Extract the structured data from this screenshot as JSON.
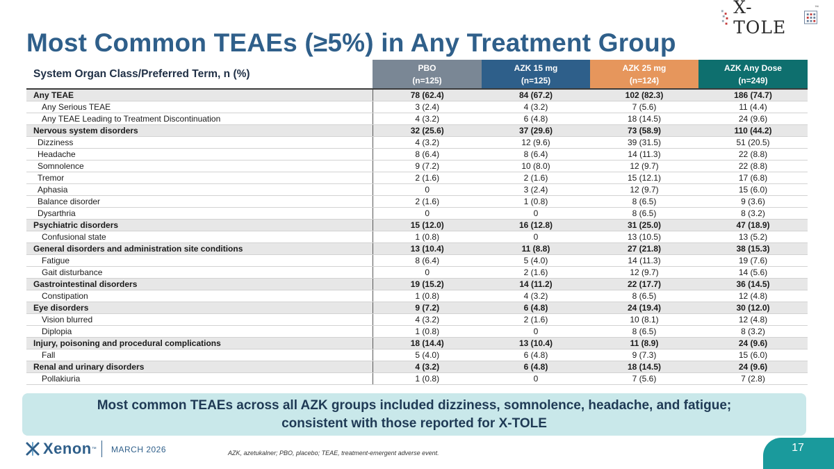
{
  "brand": {
    "product_logo": "X-TOLE",
    "company_logo": "Xenon",
    "date": "MARCH 2026",
    "page_number": "17"
  },
  "title": "Most Common TEAEs (≥5%) in Any Treatment Group",
  "table": {
    "row_header": "System Organ Class/Preferred Term, n (%)",
    "columns": [
      {
        "name": "PBO",
        "n": "(n=125)",
        "color": "#7a8795"
      },
      {
        "name": "AZK 15 mg",
        "n": "(n=125)",
        "color": "#2e5f8a"
      },
      {
        "name": "AZK 25 mg",
        "n": "(n=124)",
        "color": "#e6965c"
      },
      {
        "name": "AZK Any Dose",
        "n": "(n=249)",
        "color": "#0e6f6e"
      }
    ],
    "rows": [
      {
        "label": "Any TEAE",
        "level": 0,
        "values": [
          "78 (62.4)",
          "84 (67.2)",
          "102 (82.3)",
          "186 (74.7)"
        ]
      },
      {
        "label": "Any Serious TEAE",
        "level": 1,
        "values": [
          "3 (2.4)",
          "4 (3.2)",
          "7 (5.6)",
          "11 (4.4)"
        ]
      },
      {
        "label": "Any TEAE Leading to Treatment Discontinuation",
        "level": 1,
        "values": [
          "4 (3.2)",
          "6 (4.8)",
          "18 (14.5)",
          "24 (9.6)"
        ]
      },
      {
        "label": "Nervous system disorders",
        "level": 0,
        "values": [
          "32 (25.6)",
          "37 (29.6)",
          "73 (58.9)",
          "110 (44.2)"
        ]
      },
      {
        "label": "Dizziness",
        "level": 2,
        "values": [
          "4 (3.2)",
          "12 (9.6)",
          "39 (31.5)",
          "51 (20.5)"
        ]
      },
      {
        "label": "Headache",
        "level": 2,
        "values": [
          "8 (6.4)",
          "8 (6.4)",
          "14 (11.3)",
          "22 (8.8)"
        ]
      },
      {
        "label": "Somnolence",
        "level": 2,
        "values": [
          "9 (7.2)",
          "10 (8.0)",
          "12 (9.7)",
          "22 (8.8)"
        ]
      },
      {
        "label": "Tremor",
        "level": 2,
        "values": [
          "2 (1.6)",
          "2 (1.6)",
          "15 (12.1)",
          "17 (6.8)"
        ]
      },
      {
        "label": "Aphasia",
        "level": 2,
        "values": [
          "0",
          "3 (2.4)",
          "12 (9.7)",
          "15 (6.0)"
        ]
      },
      {
        "label": "Balance disorder",
        "level": 2,
        "values": [
          "2 (1.6)",
          "1 (0.8)",
          "8 (6.5)",
          "9 (3.6)"
        ]
      },
      {
        "label": "Dysarthria",
        "level": 2,
        "values": [
          "0",
          "0",
          "8 (6.5)",
          "8 (3.2)"
        ]
      },
      {
        "label": "Psychiatric disorders",
        "level": 0,
        "values": [
          "15 (12.0)",
          "16 (12.8)",
          "31 (25.0)",
          "47 (18.9)"
        ]
      },
      {
        "label": "Confusional state",
        "level": 1,
        "values": [
          "1 (0.8)",
          "0",
          "13 (10.5)",
          "13 (5.2)"
        ]
      },
      {
        "label": "General disorders and administration site conditions",
        "level": 0,
        "values": [
          "13 (10.4)",
          "11 (8.8)",
          "27 (21.8)",
          "38 (15.3)"
        ]
      },
      {
        "label": "Fatigue",
        "level": 1,
        "values": [
          "8 (6.4)",
          "5 (4.0)",
          "14 (11.3)",
          "19 (7.6)"
        ]
      },
      {
        "label": "Gait disturbance",
        "level": 1,
        "values": [
          "0",
          "2 (1.6)",
          "12 (9.7)",
          "14 (5.6)"
        ]
      },
      {
        "label": "Gastrointestinal disorders",
        "level": 0,
        "values": [
          "19 (15.2)",
          "14 (11.2)",
          "22 (17.7)",
          "36 (14.5)"
        ]
      },
      {
        "label": "Constipation",
        "level": 1,
        "values": [
          "1 (0.8)",
          "4 (3.2)",
          "8 (6.5)",
          "12 (4.8)"
        ]
      },
      {
        "label": "Eye disorders",
        "level": 0,
        "values": [
          "9 (7.2)",
          "6 (4.8)",
          "24 (19.4)",
          "30 (12.0)"
        ]
      },
      {
        "label": "Vision blurred",
        "level": 1,
        "values": [
          "4 (3.2)",
          "2 (1.6)",
          "10 (8.1)",
          "12 (4.8)"
        ]
      },
      {
        "label": "Diplopia",
        "level": 1,
        "values": [
          "1 (0.8)",
          "0",
          "8 (6.5)",
          "8 (3.2)"
        ]
      },
      {
        "label": "Injury, poisoning and procedural complications",
        "level": 0,
        "values": [
          "18 (14.4)",
          "13 (10.4)",
          "11 (8.9)",
          "24 (9.6)"
        ]
      },
      {
        "label": "Fall",
        "level": 1,
        "values": [
          "5 (4.0)",
          "6 (4.8)",
          "9 (7.3)",
          "15 (6.0)"
        ]
      },
      {
        "label": "Renal and urinary disorders",
        "level": 0,
        "values": [
          "4 (3.2)",
          "6 (4.8)",
          "18 (14.5)",
          "24 (9.6)"
        ]
      },
      {
        "label": "Pollakiuria",
        "level": 1,
        "values": [
          "1 (0.8)",
          "0",
          "7 (5.6)",
          "7 (2.8)"
        ]
      }
    ]
  },
  "banner": {
    "line1": "Most common TEAEs across all AZK groups included dizziness, somnolence, headache, and fatigue;",
    "line2": "consistent with those reported for X-TOLE"
  },
  "footnote": "AZK, azetukalner; PBO, placebo; TEAE, treatment-emergent adverse event."
}
